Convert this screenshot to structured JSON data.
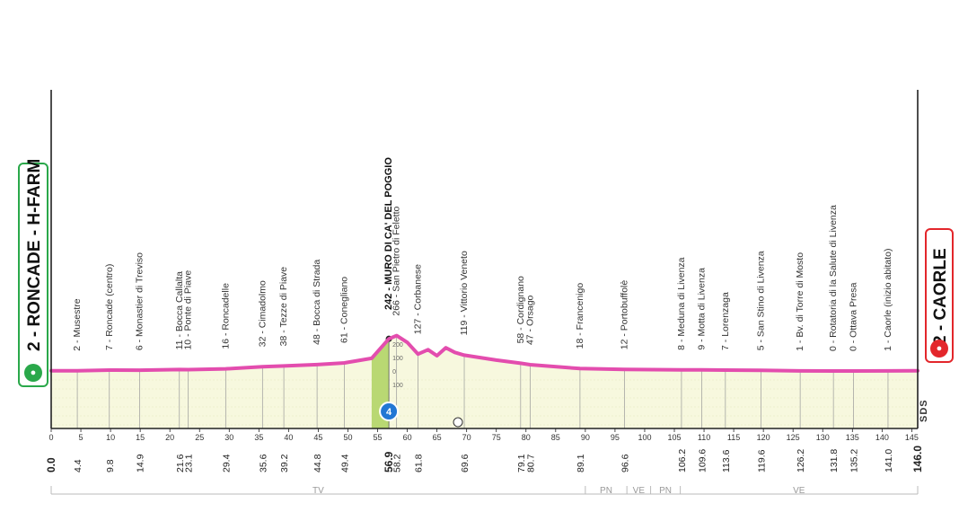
{
  "chart_data": {
    "type": "area",
    "xlabel": "",
    "ylabel": "",
    "xlim": [
      0,
      146
    ],
    "x_ticks": [
      0,
      5,
      10,
      15,
      20,
      25,
      30,
      35,
      40,
      45,
      50,
      55,
      60,
      65,
      70,
      75,
      80,
      85,
      90,
      95,
      100,
      105,
      110,
      115,
      120,
      125,
      130,
      135,
      140,
      145
    ],
    "start": {
      "label": "2 - RONCADE - H-FARM",
      "km": 0.0
    },
    "finish": {
      "label": "2 - CAORLE",
      "km": 146.0
    },
    "climb": {
      "label": "242 - MURO DI CA' DEL POGGIO",
      "km": 56.9,
      "category": "4"
    },
    "mini_scale": [
      "200",
      "100",
      "0",
      "100"
    ],
    "profile": [
      {
        "x": 0,
        "y": 2
      },
      {
        "x": 4.4,
        "y": 2
      },
      {
        "x": 9.8,
        "y": 7
      },
      {
        "x": 14.9,
        "y": 6
      },
      {
        "x": 21.6,
        "y": 11
      },
      {
        "x": 23.1,
        "y": 10
      },
      {
        "x": 29.4,
        "y": 16
      },
      {
        "x": 35.6,
        "y": 32
      },
      {
        "x": 39.2,
        "y": 38
      },
      {
        "x": 44.8,
        "y": 48
      },
      {
        "x": 49.4,
        "y": 61
      },
      {
        "x": 54,
        "y": 95
      },
      {
        "x": 56.9,
        "y": 242
      },
      {
        "x": 58.2,
        "y": 266
      },
      {
        "x": 60,
        "y": 215
      },
      {
        "x": 61.8,
        "y": 127
      },
      {
        "x": 63.5,
        "y": 160
      },
      {
        "x": 65,
        "y": 115
      },
      {
        "x": 66.5,
        "y": 175
      },
      {
        "x": 68,
        "y": 140
      },
      {
        "x": 69.6,
        "y": 119
      },
      {
        "x": 75,
        "y": 82
      },
      {
        "x": 79.1,
        "y": 58
      },
      {
        "x": 80.7,
        "y": 47
      },
      {
        "x": 89.1,
        "y": 18
      },
      {
        "x": 96.6,
        "y": 12
      },
      {
        "x": 106.2,
        "y": 8
      },
      {
        "x": 109.6,
        "y": 9
      },
      {
        "x": 113.6,
        "y": 7
      },
      {
        "x": 119.6,
        "y": 5
      },
      {
        "x": 126.2,
        "y": 1
      },
      {
        "x": 131.8,
        "y": 0
      },
      {
        "x": 135.2,
        "y": 0
      },
      {
        "x": 141.0,
        "y": 1
      },
      {
        "x": 146.0,
        "y": 2
      }
    ],
    "waypoints": [
      {
        "km": 4.4,
        "label": "2 - Musestre"
      },
      {
        "km": 9.8,
        "label": "7 - Roncade (centro)"
      },
      {
        "km": 14.9,
        "label": "6 - Monastier di Treviso"
      },
      {
        "km": 21.6,
        "label": "11 - Bocca Callalta"
      },
      {
        "km": 23.1,
        "label": "10 - Ponte di Piave"
      },
      {
        "km": 29.4,
        "label": "16 - Roncadelle"
      },
      {
        "km": 35.6,
        "label": "32 - Cimadolmo"
      },
      {
        "km": 39.2,
        "label": "38 - Tezze di Piave"
      },
      {
        "km": 44.8,
        "label": "48 - Bocca di Strada"
      },
      {
        "km": 49.4,
        "label": "61 - Conegliano"
      },
      {
        "km": 58.2,
        "label": "266 - San Pietro di Feletto"
      },
      {
        "km": 61.8,
        "label": "127 - Corbanese"
      },
      {
        "km": 69.6,
        "label": "119 - Vittorio Veneto"
      },
      {
        "km": 79.1,
        "label": "58 - Cordignano"
      },
      {
        "km": 80.7,
        "label": "47 - Orsago"
      },
      {
        "km": 89.1,
        "label": "18 - Francenigo"
      },
      {
        "km": 96.6,
        "label": "12 - Portobuffolè"
      },
      {
        "km": 106.2,
        "label": "8 - Meduna di Livenza"
      },
      {
        "km": 109.6,
        "label": "9 - Motta di Livenza"
      },
      {
        "km": 113.6,
        "label": "7 - Lorenzaga"
      },
      {
        "km": 119.6,
        "label": "5 - San Stino di Livenza"
      },
      {
        "km": 126.2,
        "label": "1 - Bv. di Torre di Mosto"
      },
      {
        "km": 131.8,
        "label": "0 - Rotatoria di la Salute di Livenza"
      },
      {
        "km": 135.2,
        "label": "0 - Ottava Presa"
      },
      {
        "km": 141.0,
        "label": "1 - Caorle (inizio abitato)"
      }
    ],
    "km_markers": [
      {
        "km": 0.0,
        "label": "0.0",
        "bold": true
      },
      {
        "km": 4.4,
        "label": "4.4"
      },
      {
        "km": 9.8,
        "label": "9.8"
      },
      {
        "km": 14.9,
        "label": "14.9"
      },
      {
        "km": 21.6,
        "label": "21.6"
      },
      {
        "km": 23.1,
        "label": "23.1"
      },
      {
        "km": 29.4,
        "label": "29.4"
      },
      {
        "km": 35.6,
        "label": "35.6"
      },
      {
        "km": 39.2,
        "label": "39.2"
      },
      {
        "km": 44.8,
        "label": "44.8"
      },
      {
        "km": 49.4,
        "label": "49.4"
      },
      {
        "km": 56.9,
        "label": "56.9",
        "bold": true
      },
      {
        "km": 58.2,
        "label": "58.2"
      },
      {
        "km": 61.8,
        "label": "61.8"
      },
      {
        "km": 69.6,
        "label": "69.6"
      },
      {
        "km": 79.1,
        "label": "79.1"
      },
      {
        "km": 80.7,
        "label": "80.7"
      },
      {
        "km": 89.1,
        "label": "89.1"
      },
      {
        "km": 96.6,
        "label": "96.6"
      },
      {
        "km": 106.2,
        "label": "106.2"
      },
      {
        "km": 109.6,
        "label": "109.6"
      },
      {
        "km": 113.6,
        "label": "113.6"
      },
      {
        "km": 119.6,
        "label": "119.6"
      },
      {
        "km": 126.2,
        "label": "126.2"
      },
      {
        "km": 131.8,
        "label": "131.8"
      },
      {
        "km": 135.2,
        "label": "135.2"
      },
      {
        "km": 141.0,
        "label": "141.0"
      },
      {
        "km": 146.0,
        "label": "146.0",
        "bold": true
      }
    ],
    "regions": [
      {
        "label": "TV",
        "from": 0,
        "to": 90
      },
      {
        "label": "PN",
        "from": 90,
        "to": 97
      },
      {
        "label": "VE",
        "from": 97,
        "to": 101
      },
      {
        "label": "PN",
        "from": 101,
        "to": 106
      },
      {
        "label": "VE",
        "from": 106,
        "to": 146
      }
    ],
    "colors": {
      "profile": "#e34dae",
      "fill": "#f7f8de",
      "climb_fill": "#b9d873",
      "start": "#2aa84a",
      "finish": "#e3262b"
    },
    "grid": true,
    "legend": "none"
  },
  "start_box": {
    "label": "2 - RONCADE - H-FARM",
    "icon": "bicycle-icon"
  },
  "finish_box": {
    "label": "2 - CAORLE",
    "icon": "bicycle-icon"
  },
  "brand": "SDS",
  "sprint_icon": "sprint-icon"
}
